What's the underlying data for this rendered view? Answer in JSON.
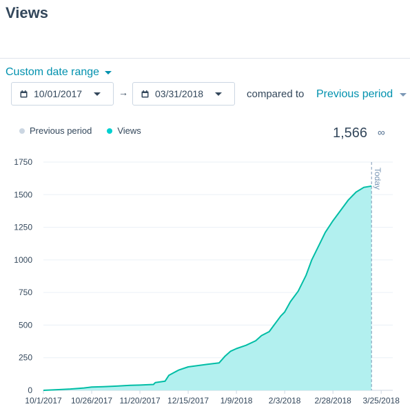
{
  "page": {
    "title": "Views"
  },
  "controls": {
    "range_label": "Custom date range",
    "start_date": "10/01/2017",
    "arrow": "→",
    "end_date": "03/31/2018",
    "compared_to": "compared to",
    "comparison_label": "Previous period"
  },
  "legend": {
    "previous": "Previous period",
    "views": "Views"
  },
  "summary": {
    "total": "1,566",
    "infinity": "∞"
  },
  "colors": {
    "accent": "#0091ae",
    "views_line": "#00bda5",
    "views_fill": "#b2f0ef",
    "previous": "#cbd6e2",
    "text": "#33475b"
  },
  "chart_data": {
    "type": "area",
    "series": [
      {
        "name": "Views",
        "points": [
          [
            "2017-10-01",
            0
          ],
          [
            "2017-10-08",
            5
          ],
          [
            "2017-10-15",
            10
          ],
          [
            "2017-10-22",
            18
          ],
          [
            "2017-10-26",
            25
          ],
          [
            "2017-11-01",
            28
          ],
          [
            "2017-11-08",
            32
          ],
          [
            "2017-11-15",
            38
          ],
          [
            "2017-11-20",
            40
          ],
          [
            "2017-11-27",
            45
          ],
          [
            "2017-11-28",
            60
          ],
          [
            "2017-12-03",
            70
          ],
          [
            "2017-12-05",
            115
          ],
          [
            "2017-12-10",
            155
          ],
          [
            "2017-12-15",
            180
          ],
          [
            "2017-12-20",
            190
          ],
          [
            "2017-12-25",
            200
          ],
          [
            "2017-12-31",
            210
          ],
          [
            "2018-01-03",
            260
          ],
          [
            "2018-01-06",
            300
          ],
          [
            "2018-01-09",
            320
          ],
          [
            "2018-01-14",
            345
          ],
          [
            "2018-01-19",
            380
          ],
          [
            "2018-01-22",
            420
          ],
          [
            "2018-01-26",
            450
          ],
          [
            "2018-01-29",
            510
          ],
          [
            "2018-02-01",
            570
          ],
          [
            "2018-02-03",
            600
          ],
          [
            "2018-02-06",
            680
          ],
          [
            "2018-02-10",
            760
          ],
          [
            "2018-02-14",
            880
          ],
          [
            "2018-02-17",
            1000
          ],
          [
            "2018-02-21",
            1120
          ],
          [
            "2018-02-24",
            1210
          ],
          [
            "2018-02-28",
            1300
          ],
          [
            "2018-03-04",
            1380
          ],
          [
            "2018-03-08",
            1460
          ],
          [
            "2018-03-12",
            1520
          ],
          [
            "2018-03-16",
            1556
          ],
          [
            "2018-03-20",
            1566
          ]
        ]
      }
    ],
    "x_tick_labels": [
      "10/1/2017",
      "10/26/2017",
      "11/20/2017",
      "12/15/2017",
      "1/9/2018",
      "2/3/2018",
      "2/28/2018",
      "3/25/2018"
    ],
    "x_ticks": [
      "2017-10-01",
      "2017-10-26",
      "2017-11-20",
      "2017-12-15",
      "2018-01-09",
      "2018-02-03",
      "2018-02-28",
      "2018-03-25"
    ],
    "y_ticks": [
      0,
      250,
      500,
      750,
      1000,
      1250,
      1500,
      1750
    ],
    "ylim": [
      0,
      1750
    ],
    "xlim": [
      "2017-10-01",
      "2018-03-31"
    ],
    "today": "2018-03-20",
    "today_label": "Today",
    "grid": true
  }
}
